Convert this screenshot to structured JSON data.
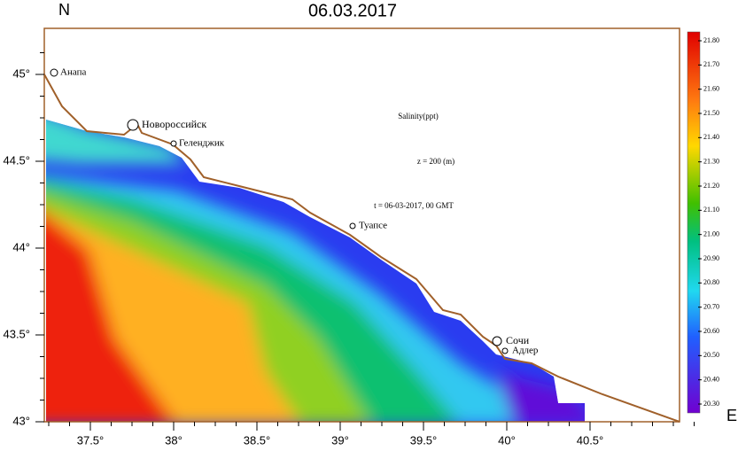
{
  "map": {
    "title": "06.03.2017",
    "north_label": "N",
    "east_label": "E",
    "lat_ticks": [
      {
        "value": 43,
        "label": "43°"
      },
      {
        "value": 43.5,
        "label": "43.5°"
      },
      {
        "value": 44,
        "label": "44°"
      },
      {
        "value": 44.5,
        "label": "44.5°"
      },
      {
        "value": 45,
        "label": "45°"
      }
    ],
    "lon_ticks": [
      {
        "value": 37.5,
        "label": "37.5°"
      },
      {
        "value": 38,
        "label": "38°"
      },
      {
        "value": 38.5,
        "label": "38.5°"
      },
      {
        "value": 39,
        "label": "39°"
      },
      {
        "value": 39.5,
        "label": "39.5°"
      },
      {
        "value": 40,
        "label": "40°"
      },
      {
        "value": 40.5,
        "label": "40.5°"
      }
    ],
    "cities": [
      "Анапа",
      "Новороссийск",
      "Геленджик",
      "Туапсе",
      "Сочи",
      "Адлер"
    ],
    "annotations": [
      "Salinity(ppt)",
      "z = 200 (m)",
      "t = 06-03-2017, 00 GMT"
    ],
    "colorbar_ticks": [
      {
        "value": 21.8,
        "label": "21.80"
      },
      {
        "value": 21.7,
        "label": "21.70"
      },
      {
        "value": 21.6,
        "label": "21.60"
      },
      {
        "value": 21.5,
        "label": "21.50"
      },
      {
        "value": 21.4,
        "label": "21.40"
      },
      {
        "value": 21.3,
        "label": "21.30"
      },
      {
        "value": 21.2,
        "label": "21.20"
      },
      {
        "value": 21.1,
        "label": "21.10"
      },
      {
        "value": 21,
        "label": "21.00"
      },
      {
        "value": 20.9,
        "label": "20.90"
      },
      {
        "value": 20.8,
        "label": "20.80"
      },
      {
        "value": 20.7,
        "label": "20.70"
      },
      {
        "value": 20.6,
        "label": "20.60"
      },
      {
        "value": 20.5,
        "label": "20.50"
      },
      {
        "value": 20.4,
        "label": "20.40"
      },
      {
        "value": 20.3,
        "label": "20.30"
      }
    ]
  }
}
